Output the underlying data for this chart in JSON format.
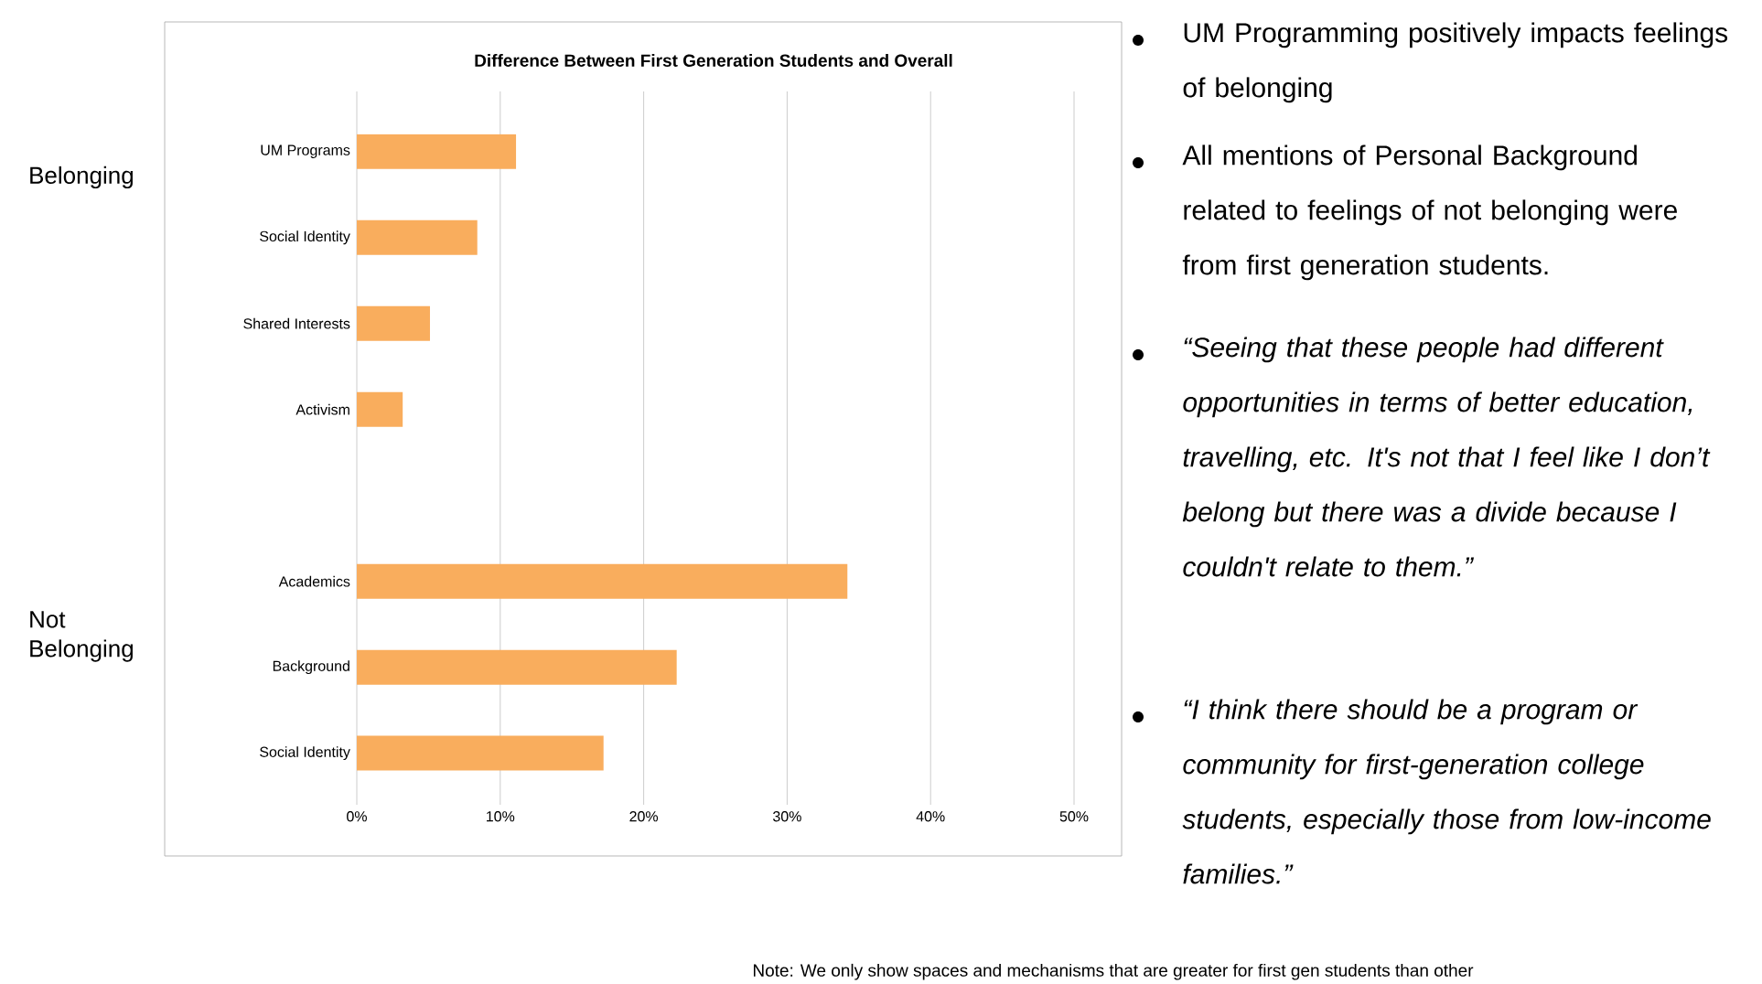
{
  "chart_data": {
    "type": "bar",
    "orientation": "horizontal",
    "title": "Difference Between First Generation Students and Overall",
    "categories": [
      "UM Programs",
      "Social Identity",
      "Shared Interests",
      "Activism",
      null,
      "Academics",
      "Background",
      "Social Identity"
    ],
    "values": [
      11.1,
      8.4,
      5.1,
      3.2,
      null,
      34.2,
      22.3,
      17.2
    ],
    "color": "#f9ad5d",
    "xlim": [
      0,
      50
    ],
    "xticks": [
      {
        "value": 0,
        "label": "0%"
      },
      {
        "value": 10,
        "label": "10%"
      },
      {
        "value": 20,
        "label": "20%"
      },
      {
        "value": 30,
        "label": "30%"
      },
      {
        "value": 40,
        "label": "40%"
      },
      {
        "value": 50,
        "label": "50%"
      }
    ],
    "grid": "x",
    "annotations": [
      "Belonging",
      "Not Belonging",
      "UM Programming positively impacts feelings of belonging",
      "All mentions of Personal Background related to feelings of not belonging were from first generation students.",
      "“Seeing that these people had different opportunities in terms of better education, travelling, etc. It's not that I feel like I don’t belong but there was a divide because I couldn't relate to them.”",
      "“I think there should be a program or community for first-generation college students, especially those from low-income families.”",
      "Note: We only show spaces and mechanisms that are greater for first gen students than other"
    ]
  }
}
